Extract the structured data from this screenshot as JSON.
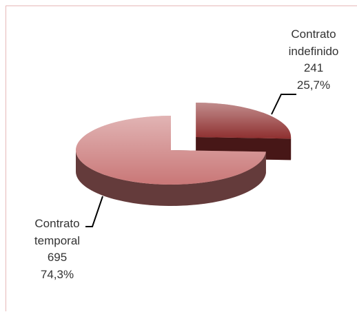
{
  "chart_data": {
    "type": "pie3d",
    "categories": [
      "Contrato indefinido",
      "Contrato temporal"
    ],
    "values": [
      241,
      695
    ],
    "percentages": [
      25.7,
      74.3
    ],
    "percentage_labels": [
      "25,7%",
      "74,3%"
    ],
    "colors": [
      "#8e2f2f",
      "#c97777"
    ],
    "exploded": [
      true,
      false
    ]
  }
}
